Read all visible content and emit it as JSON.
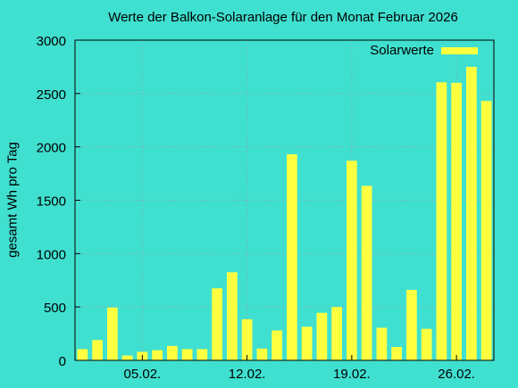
{
  "chart_data": {
    "type": "bar",
    "title": "Werte der Balkon-Solaranlage für den Monat Februar 2026",
    "xlabel": "",
    "ylabel": "gesamt Wh pro Tag",
    "ylim": [
      0,
      3000
    ],
    "yticks": [
      0,
      500,
      1000,
      1500,
      2000,
      2500,
      3000
    ],
    "xlim": [
      0.5,
      28.5
    ],
    "xticks": [
      {
        "day": 5,
        "label": "05.02."
      },
      {
        "day": 12,
        "label": "12.02."
      },
      {
        "day": 19,
        "label": "19.02."
      },
      {
        "day": 26,
        "label": "26.02."
      }
    ],
    "grid": true,
    "legend": {
      "position": "top-right"
    },
    "series": [
      {
        "name": "Solarwerte",
        "color": "#ffff40",
        "days": [
          1,
          2,
          3,
          4,
          5,
          6,
          7,
          8,
          9,
          10,
          11,
          12,
          13,
          14,
          15,
          16,
          17,
          18,
          19,
          20,
          21,
          22,
          23,
          24,
          25,
          26,
          27,
          28
        ],
        "values": [
          105,
          190,
          495,
          45,
          80,
          95,
          135,
          105,
          105,
          675,
          825,
          385,
          110,
          280,
          1930,
          315,
          445,
          500,
          1870,
          1635,
          305,
          125,
          660,
          295,
          2605,
          2600,
          2750,
          2430
        ]
      }
    ]
  }
}
